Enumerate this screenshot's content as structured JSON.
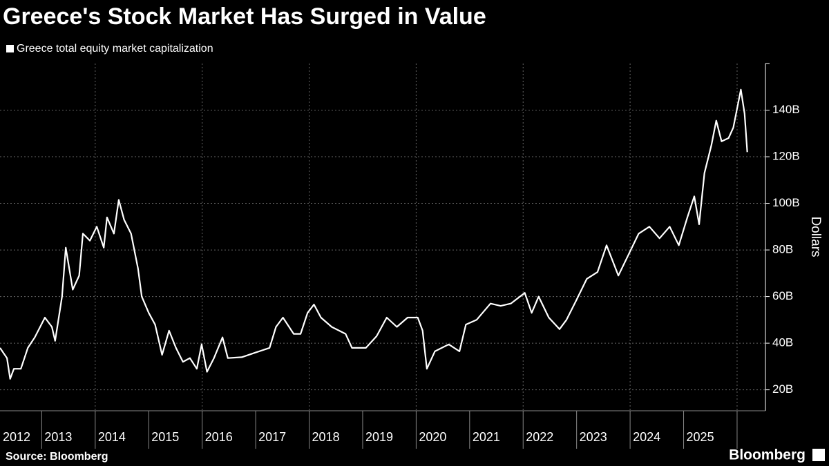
{
  "chart_data": {
    "type": "line",
    "title": "Greece's Stock Market Has Surged in Value",
    "y_label": "Dollars",
    "source": "Source: Bloomberg",
    "brand": "Bloomberg",
    "xlim": [
      2012.22,
      2026.53
    ],
    "xticks": [
      2012,
      2013,
      2014,
      2015,
      2016,
      2017,
      2018,
      2019,
      2020,
      2021,
      2022,
      2023,
      2024,
      2025
    ],
    "ylim": [
      11,
      160
    ],
    "yticks": [
      {
        "value": 20,
        "label": "20B"
      },
      {
        "value": 40,
        "label": "40B"
      },
      {
        "value": 60,
        "label": "60B"
      },
      {
        "value": 80,
        "label": "80B"
      },
      {
        "value": 100,
        "label": "100B"
      },
      {
        "value": 120,
        "label": "120B"
      },
      {
        "value": 140,
        "label": "140B"
      }
    ],
    "grid": true,
    "x": [
      2012.22,
      2012.35,
      2012.41,
      2012.48,
      2012.61,
      2012.74,
      2012.87,
      2013.06,
      2013.19,
      2013.25,
      2013.38,
      2013.45,
      2013.58,
      2013.7,
      2013.77,
      2013.9,
      2014.03,
      2014.16,
      2014.22,
      2014.35,
      2014.44,
      2014.54,
      2014.67,
      2014.8,
      2014.87,
      2015.0,
      2015.12,
      2015.25,
      2015.38,
      2015.51,
      2015.64,
      2015.77,
      2015.9,
      2015.99,
      2016.09,
      2016.22,
      2016.38,
      2016.48,
      2016.74,
      2017.0,
      2017.26,
      2017.38,
      2017.51,
      2017.71,
      2017.84,
      2017.97,
      2018.09,
      2018.22,
      2018.42,
      2018.68,
      2018.8,
      2019.06,
      2019.26,
      2019.45,
      2019.64,
      2019.84,
      2020.03,
      2020.12,
      2020.2,
      2020.35,
      2020.61,
      2020.81,
      2020.93,
      2021.13,
      2021.39,
      2021.58,
      2021.77,
      2022.03,
      2022.16,
      2022.29,
      2022.48,
      2022.68,
      2022.81,
      2023.0,
      2023.19,
      2023.39,
      2023.56,
      2023.78,
      2023.97,
      2024.16,
      2024.36,
      2024.55,
      2024.74,
      2024.91,
      2025.07,
      2025.2,
      2025.29,
      2025.39,
      2025.52,
      2025.61,
      2025.71,
      2025.84,
      2025.93,
      2026.07,
      2026.14,
      2026.19
    ],
    "series": [
      {
        "name": "Greece total equity market capitalization",
        "color": "#ffffff",
        "values": [
          38,
          33.6,
          24.7,
          29,
          29,
          38,
          42.5,
          51,
          47,
          41,
          60,
          81,
          63,
          69,
          87,
          84,
          90,
          81,
          94,
          87,
          101.5,
          93,
          87,
          72,
          60,
          53,
          48,
          35,
          45.4,
          38,
          32,
          33.6,
          29,
          39.5,
          27.7,
          33.6,
          42.5,
          33.6,
          34,
          36,
          38,
          47,
          51,
          44,
          44,
          53,
          56.6,
          51,
          47,
          44,
          38,
          38,
          43,
          51,
          47,
          51,
          51,
          45.4,
          29,
          36.5,
          39.5,
          36.5,
          48,
          50,
          57,
          56,
          57,
          61.6,
          53,
          60,
          51,
          46,
          50,
          58.7,
          67.6,
          70.5,
          82,
          69,
          78,
          87,
          90,
          85,
          90,
          82,
          94,
          103,
          91,
          113,
          125,
          135.5,
          126.6,
          128,
          132.5,
          148.8,
          138.5,
          122
        ]
      }
    ]
  }
}
